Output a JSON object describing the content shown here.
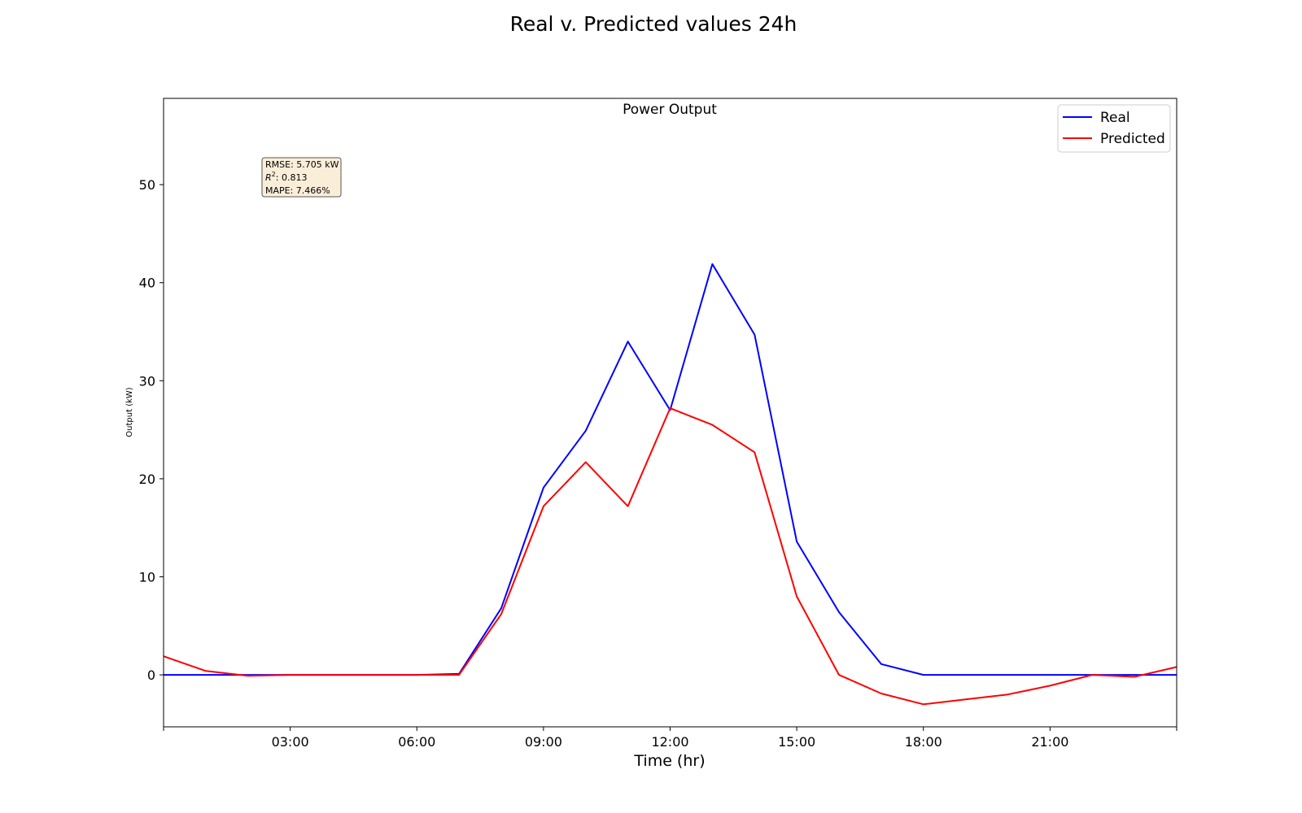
{
  "figure": {
    "suptitle": "Real v. Predicted values 24h"
  },
  "chart_data": {
    "type": "line",
    "title": "Power Output",
    "xlabel": "Time (hr)",
    "ylabel": "Output (kW)",
    "x_unit": "hour of day",
    "xlim": [
      0,
      24
    ],
    "ylim": [
      -5.3,
      58.8
    ],
    "x_ticks": [
      3,
      6,
      9,
      12,
      15,
      18,
      21
    ],
    "x_tick_labels": [
      "03:00",
      "06:00",
      "09:00",
      "12:00",
      "15:00",
      "18:00",
      "21:00"
    ],
    "y_ticks": [
      0,
      10,
      20,
      30,
      40,
      50
    ],
    "y_tick_labels": [
      "0",
      "10",
      "20",
      "30",
      "40",
      "50"
    ],
    "grid": false,
    "legend_position": "top-right",
    "x": [
      0,
      1,
      2,
      3,
      4,
      5,
      6,
      7,
      8,
      9,
      10,
      11,
      12,
      13,
      14,
      15,
      16,
      17,
      18,
      19,
      20,
      21,
      22,
      23,
      24
    ],
    "series": [
      {
        "name": "Real",
        "color": "#0000ff",
        "values": [
          0,
          0,
          0,
          0,
          0,
          0,
          0,
          0.1,
          6.8,
          19.1,
          24.9,
          34.0,
          27.0,
          41.9,
          34.7,
          13.6,
          6.4,
          1.1,
          0,
          0,
          0,
          0,
          0,
          0,
          0
        ]
      },
      {
        "name": "Predicted",
        "color": "#ff0000",
        "values": [
          1.9,
          0.4,
          -0.1,
          0,
          0,
          0,
          0,
          0,
          6.2,
          17.2,
          21.7,
          17.2,
          27.2,
          25.5,
          22.7,
          8.0,
          0,
          -1.9,
          -3.0,
          -2.5,
          -2.0,
          -1.1,
          0,
          -0.2,
          0.8
        ]
      }
    ],
    "stats_box": {
      "rmse": "RMSE: 5.705 kW",
      "r2_prefix": "R",
      "r2_superscript": "2",
      "r2_value": ": 0.813",
      "mape": "MAPE: 7.466%",
      "background": "#fbeed9",
      "border": "#555555"
    }
  }
}
